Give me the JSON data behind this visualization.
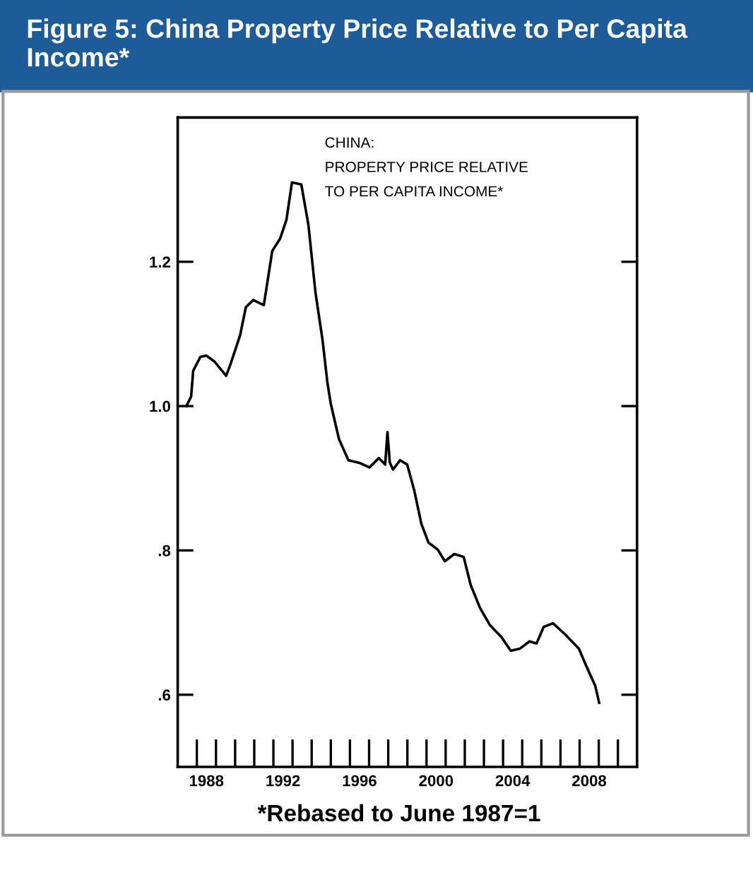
{
  "chart_data": {
    "type": "line",
    "title": "Figure 5: China Property Price Relative to Per Capita Income*",
    "annotations": [
      "CHINA:\nPROPERTY PRICE RELATIVE\nTO PER CAPITA INCOME*",
      "*Rebased to June 1987=1"
    ],
    "series": [
      {
        "color": "#000000",
        "x": [
          1987.45,
          1987.7,
          1987.81,
          1988.18,
          1988.49,
          1988.91,
          1989.53,
          1989.77,
          1990.26,
          1990.56,
          1990.95,
          1991.5,
          1991.94,
          1992.35,
          1992.68,
          1992.97,
          1993.46,
          1993.83,
          1994.2,
          1994.57,
          1994.82,
          1995.0,
          1995.43,
          1995.92,
          1996.53,
          1997.02,
          1997.51,
          1997.84,
          1997.96,
          1998.08,
          1998.25,
          1998.62,
          1998.99,
          1999.36,
          1999.73,
          2000.1,
          2000.59,
          2000.96,
          2001.45,
          2001.94,
          2002.31,
          2002.8,
          2003.3,
          2003.91,
          2004.4,
          2004.89,
          2005.38,
          2005.75,
          2006.12,
          2006.61,
          2007.23,
          2007.96,
          2008.33,
          2008.82,
          2009.02
        ],
        "values": [
          1.0,
          1.013,
          1.049,
          1.068,
          1.07,
          1.062,
          1.042,
          1.059,
          1.098,
          1.137,
          1.147,
          1.14,
          1.215,
          1.232,
          1.258,
          1.31,
          1.307,
          1.251,
          1.157,
          1.091,
          1.033,
          1.003,
          0.954,
          0.925,
          0.921,
          0.915,
          0.928,
          0.919,
          0.964,
          0.922,
          0.912,
          0.925,
          0.919,
          0.883,
          0.837,
          0.811,
          0.801,
          0.785,
          0.795,
          0.791,
          0.752,
          0.72,
          0.697,
          0.68,
          0.661,
          0.664,
          0.674,
          0.671,
          0.694,
          0.699,
          0.684,
          0.664,
          0.641,
          0.612,
          0.589
        ]
      }
    ],
    "xlim": [
      1987,
      2011
    ],
    "ylim": [
      0.5,
      1.4
    ],
    "xticks": [
      {
        "value": 1988.5,
        "label": "1988"
      },
      {
        "value": 1992.5,
        "label": "1992"
      },
      {
        "value": 1996.5,
        "label": "1996"
      },
      {
        "value": 2000.5,
        "label": "2000"
      },
      {
        "value": 2004.5,
        "label": "2004"
      },
      {
        "value": 2008.5,
        "label": "2008"
      }
    ],
    "yticks": [
      {
        "value": 0.6,
        "label": ".6"
      },
      {
        "value": 0.8,
        "label": ".8"
      },
      {
        "value": 1.0,
        "label": "1.0"
      },
      {
        "value": 1.2,
        "label": "1.2"
      }
    ],
    "grid": false,
    "legend": false,
    "marker": "none",
    "line_style": "solid"
  }
}
